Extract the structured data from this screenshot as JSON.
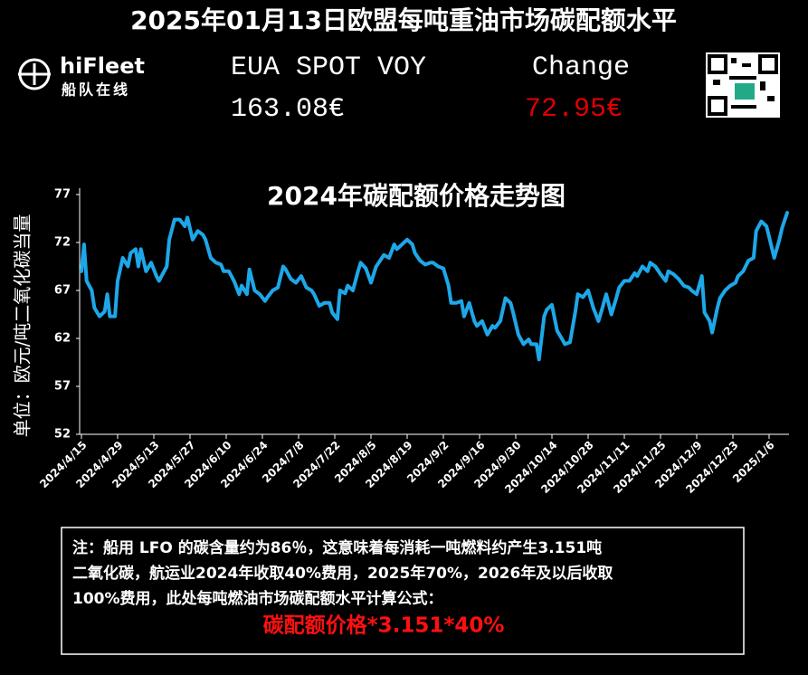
{
  "header": {
    "title": "2025年01月13日欧盟每吨重油市场碳配额水平",
    "logo_name": "hiFleet",
    "logo_sub": "船队在线",
    "price_label": "EUA SPOT VOY",
    "price": "163.08€",
    "change_label": "Change",
    "change": "72.95€"
  },
  "chart_data": {
    "type": "line",
    "title": "2024年碳配额价格走势图",
    "y_label": "单位：欧元/吨二氧化碳当量",
    "color": "#1ea7e8",
    "x": [
      "2024/4/15",
      "2024/4/16",
      "2024/4/17",
      "2024/4/19",
      "2024/4/20",
      "2024/4/22",
      "2024/4/24",
      "2024/4/25",
      "2024/4/26",
      "2024/4/28",
      "2024/4/29",
      "2024/5/1",
      "2024/5/3",
      "2024/5/4",
      "2024/5/6",
      "2024/5/7",
      "2024/5/8",
      "2024/5/10",
      "2024/5/12",
      "2024/5/14",
      "2024/5/15",
      "2024/5/18",
      "2024/5/19",
      "2024/5/21",
      "2024/5/23",
      "2024/5/25",
      "2024/5/26",
      "2024/5/28",
      "2024/5/30",
      "2024/6/1",
      "2024/6/2",
      "2024/6/4",
      "2024/6/6",
      "2024/6/8",
      "2024/6/9",
      "2024/6/11",
      "2024/6/13",
      "2024/6/15",
      "2024/6/16",
      "2024/6/18",
      "2024/6/19",
      "2024/6/21",
      "2024/6/23",
      "2024/6/25",
      "2024/6/26",
      "2024/6/28",
      "2024/6/30",
      "2024/7/2",
      "2024/7/3",
      "2024/7/5",
      "2024/7/7",
      "2024/7/9",
      "2024/7/11",
      "2024/7/13",
      "2024/7/14",
      "2024/7/16",
      "2024/7/18",
      "2024/7/20",
      "2024/7/21",
      "2024/7/23",
      "2024/7/24",
      "2024/7/26",
      "2024/7/27",
      "2024/7/29",
      "2024/7/31",
      "2024/8/1",
      "2024/8/3",
      "2024/8/5",
      "2024/8/7",
      "2024/8/8",
      "2024/8/10",
      "2024/8/12",
      "2024/8/14",
      "2024/8/15",
      "2024/8/17",
      "2024/8/19",
      "2024/8/21",
      "2024/8/22",
      "2024/8/24",
      "2024/8/26",
      "2024/8/28",
      "2024/8/29",
      "2024/8/31",
      "2024/9/2",
      "2024/9/4",
      "2024/9/5",
      "2024/9/7",
      "2024/9/9",
      "2024/9/10",
      "2024/9/12",
      "2024/9/14",
      "2024/9/15",
      "2024/9/17",
      "2024/9/19",
      "2024/9/21",
      "2024/9/22",
      "2024/9/24",
      "2024/9/26",
      "2024/9/28",
      "2024/9/29",
      "2024/10/1",
      "2024/10/3",
      "2024/10/5",
      "2024/10/6",
      "2024/10/8",
      "2024/10/9",
      "2024/10/11",
      "2024/10/12",
      "2024/10/14",
      "2024/10/16",
      "2024/10/18",
      "2024/10/19",
      "2024/10/21",
      "2024/10/23",
      "2024/10/24",
      "2024/10/26",
      "2024/10/28",
      "2024/10/30",
      "2024/11/1",
      "2024/11/2",
      "2024/11/4",
      "2024/11/6",
      "2024/11/8",
      "2024/11/9",
      "2024/11/11",
      "2024/11/13",
      "2024/11/15",
      "2024/11/16",
      "2024/11/18",
      "2024/11/20",
      "2024/11/21",
      "2024/11/23",
      "2024/11/25",
      "2024/11/27",
      "2024/11/28",
      "2024/11/30",
      "2024/12/2",
      "2024/12/4",
      "2024/12/6",
      "2024/12/7",
      "2024/12/9",
      "2024/12/11",
      "2024/12/12",
      "2024/12/14",
      "2024/12/15",
      "2024/12/17",
      "2024/12/18",
      "2024/12/20",
      "2024/12/22",
      "2024/12/24",
      "2024/12/25",
      "2024/12/27",
      "2024/12/29",
      "2024/12/31",
      "2025/1/1",
      "2025/1/3",
      "2025/1/5",
      "2025/1/6",
      "2025/1/8",
      "2025/1/10",
      "2025/1/11",
      "2025/1/13"
    ],
    "values": [
      69,
      71.8,
      68,
      67,
      65.2,
      64.3,
      64.8,
      66.6,
      64.3,
      64.3,
      68,
      70.4,
      69.5,
      70.9,
      71.3,
      69.5,
      71.3,
      69,
      69.9,
      68.5,
      68,
      69.5,
      72.3,
      74.4,
      74.4,
      73.7,
      74.6,
      72.3,
      73.2,
      72.8,
      72.3,
      70.4,
      69.9,
      69.7,
      69,
      69,
      68,
      66.6,
      67.5,
      66.6,
      69.2,
      67,
      66.6,
      65.9,
      66.3,
      67,
      67.3,
      69.5,
      69.2,
      68.2,
      67.8,
      68.5,
      67.3,
      67,
      66.6,
      65.4,
      65.7,
      65.7,
      64.7,
      64,
      67,
      66.7,
      67.5,
      67,
      69,
      69.9,
      69.3,
      67.8,
      69.5,
      69.9,
      70.7,
      70.4,
      71.8,
      71.3,
      71.8,
      72.3,
      71.8,
      70.9,
      70.1,
      69.7,
      69.9,
      69.9,
      69.5,
      69.3,
      67.5,
      65.7,
      65.7,
      65.9,
      64.3,
      65.7,
      63.8,
      63.3,
      63.8,
      62.4,
      63.3,
      63.1,
      63.8,
      66.2,
      65.7,
      64.7,
      62.4,
      61.4,
      61.9,
      61.4,
      61.4,
      59.8,
      64.3,
      65,
      65.5,
      62.8,
      61.9,
      61.4,
      61.6,
      64.7,
      66.6,
      66.3,
      67,
      65.2,
      63.8,
      64.7,
      66.6,
      64.5,
      66.3,
      67.3,
      68,
      68,
      68.8,
      68.5,
      69.5,
      69,
      69.9,
      69.5,
      68.7,
      68,
      69,
      68.7,
      68.2,
      67.5,
      67.3,
      67,
      66.6,
      68.5,
      64.7,
      63.8,
      62.6,
      65.2,
      66.2,
      67,
      67.5,
      67.8,
      68.5,
      69,
      70.1,
      70.4,
      73.2,
      74.2,
      73.7,
      72.6,
      70.4,
      72.3,
      73.5,
      75.1
    ],
    "xlim": [
      "2024/4/15",
      "2025/1/13"
    ],
    "xticks": [
      "2024/4/15",
      "2024/4/29",
      "2024/5/13",
      "2024/5/27",
      "2024/6/10",
      "2024/6/24",
      "2024/7/8",
      "2024/7/22",
      "2024/8/5",
      "2024/8/19",
      "2024/9/2",
      "2024/9/16",
      "2024/9/30",
      "2024/10/14",
      "2024/10/28",
      "2024/11/11",
      "2024/11/25",
      "2024/12/9",
      "2024/12/23",
      "2025/1/6"
    ],
    "ylim": [
      52,
      77
    ],
    "yticks": [
      52,
      57,
      62,
      67,
      72,
      77
    ],
    "grid": false
  },
  "note": {
    "lines": [
      "注：船用 LFO 的碳含量约为86％，这意味着每消耗一吨燃料约产生3.151吨",
      "二氧化碳，航运业2024年收取40%费用，2025年70%，2026年及以后收取",
      "100%费用，此处每吨燃油市场碳配额水平计算公式："
    ],
    "formula": "碳配额价格*3.151*40%"
  }
}
